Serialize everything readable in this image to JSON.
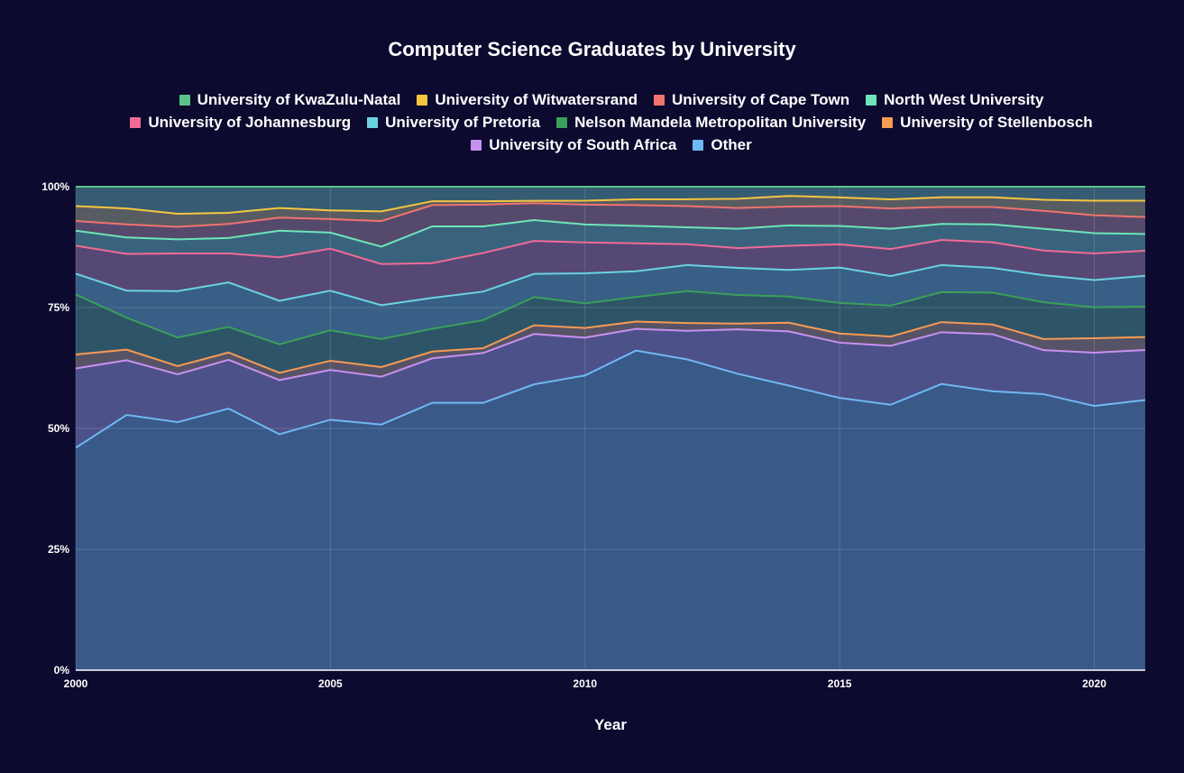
{
  "chart_data": {
    "type": "area",
    "stacked": true,
    "normalized": true,
    "title": "Computer Science Graduates by University",
    "xlabel": "Year",
    "ylabel": "",
    "x": [
      2000,
      2001,
      2002,
      2003,
      2004,
      2005,
      2006,
      2007,
      2008,
      2009,
      2010,
      2011,
      2012,
      2013,
      2014,
      2015,
      2016,
      2017,
      2018,
      2019,
      2020,
      2021
    ],
    "xlim": [
      2000,
      2021
    ],
    "x_ticks": [
      2000,
      2005,
      2010,
      2015,
      2020
    ],
    "x_tick_labels": [
      "2000",
      "2005",
      "2010",
      "2015",
      "2020"
    ],
    "ylim": [
      0,
      100
    ],
    "y_ticks": [
      0,
      25,
      50,
      75,
      100
    ],
    "y_tick_labels": [
      "0%",
      "25%",
      "50%",
      "75%",
      "100%"
    ],
    "legend_position": "top",
    "legend_rows": [
      [
        "University of KwaZulu-Natal",
        "University of Witwatersrand",
        "University of Cape Town",
        "North West University"
      ],
      [
        "University of Johannesburg",
        "University of Pretoria",
        "Nelson Mandela Metropolitan University",
        "University of Stellenbosch"
      ],
      [
        "University of South Africa",
        "Other"
      ]
    ],
    "series_stack_order_bottom_to_top": [
      "Other",
      "University of South Africa",
      "University of Stellenbosch",
      "Nelson Mandela Metropolitan University",
      "University of Pretoria",
      "University of Johannesburg",
      "North West University",
      "University of Cape Town",
      "University of Witwatersrand",
      "University of KwaZulu-Natal"
    ],
    "series": [
      {
        "name": "Other",
        "color": "#6fb8f2",
        "values": [
          46.0,
          52.8,
          51.3,
          54.1,
          48.8,
          51.8,
          50.8,
          55.3,
          55.3,
          59.0,
          60.9,
          66.1,
          64.3,
          61.3,
          58.8,
          56.2,
          54.9,
          59.2,
          57.7,
          57.1,
          54.6,
          56.1
        ]
      },
      {
        "name": "University of South Africa",
        "color": "#c791f0",
        "values": [
          16.4,
          11.3,
          9.9,
          10.1,
          11.2,
          10.3,
          9.9,
          9.2,
          10.3,
          10.4,
          7.8,
          4.5,
          5.9,
          9.2,
          11.2,
          11.4,
          12.2,
          10.7,
          11.8,
          9.1,
          11.0,
          10.4
        ]
      },
      {
        "name": "University of Stellenbosch",
        "color": "#f79a54",
        "values": [
          2.9,
          2.2,
          1.7,
          1.5,
          1.5,
          1.9,
          2.0,
          1.4,
          1.0,
          1.8,
          2.0,
          1.5,
          1.6,
          1.2,
          1.8,
          1.9,
          1.9,
          2.1,
          2.0,
          2.3,
          3.0,
          2.7
        ]
      },
      {
        "name": "Nelson Mandela Metropolitan University",
        "color": "#3aa05a",
        "values": [
          12.4,
          6.6,
          5.9,
          5.3,
          5.9,
          6.3,
          5.8,
          4.7,
          5.8,
          5.8,
          5.1,
          5.1,
          6.6,
          5.9,
          5.4,
          6.3,
          6.4,
          6.2,
          6.6,
          7.6,
          6.4,
          6.3
        ]
      },
      {
        "name": "University of Pretoria",
        "color": "#6ad3e0",
        "values": [
          4.3,
          5.6,
          9.6,
          9.2,
          9.0,
          8.2,
          7.0,
          6.4,
          5.9,
          4.8,
          6.2,
          5.3,
          5.4,
          5.6,
          5.5,
          7.3,
          6.1,
          5.6,
          5.1,
          5.6,
          5.6,
          6.4
        ]
      },
      {
        "name": "University of Johannesburg",
        "color": "#f06b95",
        "values": [
          5.8,
          7.6,
          7.8,
          6.0,
          9.0,
          8.7,
          8.5,
          7.2,
          8.0,
          6.8,
          6.4,
          5.8,
          4.3,
          4.1,
          5.0,
          4.8,
          5.6,
          5.2,
          5.3,
          5.1,
          5.5,
          5.2
        ]
      },
      {
        "name": "North West University",
        "color": "#6de4b8",
        "values": [
          3.1,
          3.4,
          2.9,
          3.2,
          5.5,
          3.3,
          3.6,
          7.6,
          5.5,
          4.3,
          3.7,
          3.6,
          3.5,
          4.0,
          4.2,
          3.8,
          4.2,
          3.3,
          3.7,
          4.5,
          4.2,
          3.5
        ]
      },
      {
        "name": "University of Cape Town",
        "color": "#f0736e",
        "values": [
          2.0,
          2.7,
          2.6,
          2.9,
          2.7,
          2.8,
          5.3,
          4.4,
          4.5,
          3.5,
          4.1,
          4.3,
          4.4,
          4.3,
          3.9,
          4.1,
          4.2,
          3.5,
          3.6,
          3.7,
          3.7,
          3.5
        ]
      },
      {
        "name": "University of Witwatersrand",
        "color": "#f5c542",
        "values": [
          3.1,
          3.3,
          2.7,
          2.3,
          2.0,
          1.8,
          2.0,
          0.8,
          0.7,
          0.5,
          0.8,
          1.2,
          1.4,
          1.9,
          2.2,
          1.8,
          1.9,
          2.0,
          2.0,
          2.3,
          3.0,
          3.4
        ]
      },
      {
        "name": "University of KwaZulu-Natal",
        "color": "#5bc38a",
        "values": [
          4.0,
          4.5,
          5.6,
          5.4,
          4.4,
          4.9,
          5.1,
          3.0,
          3.0,
          2.9,
          2.9,
          2.6,
          2.6,
          2.5,
          1.9,
          2.2,
          2.6,
          2.2,
          2.2,
          2.7,
          2.9,
          2.9
        ]
      }
    ]
  },
  "colors": {
    "background": "#0c0a2e",
    "plot_background": "#2b3f6c",
    "grid": "#4a5a84",
    "text": "#ffffff"
  }
}
